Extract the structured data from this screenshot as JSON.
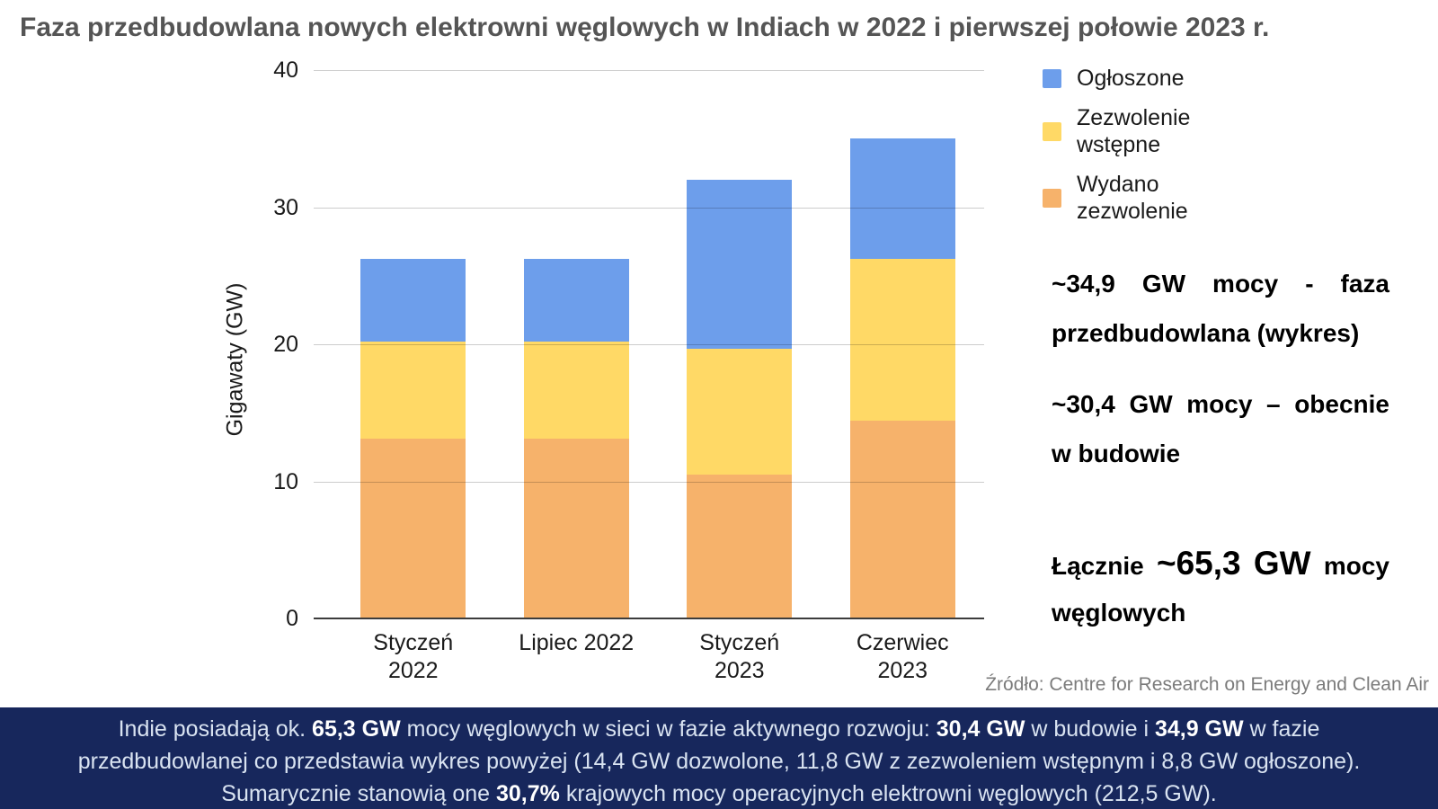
{
  "title": "Faza przedbudowlana nowych elektrowni węglowych w Indiach w 2022 i pierwszej połowie 2023 r.",
  "colors": {
    "announced_blue": "#6d9eeb",
    "pre_permit_yellow": "#ffd966",
    "permitted_orange": "#f6b26b",
    "banner_background": "#17275c",
    "banner_text": "#d9e3f1",
    "title_text": "#555555",
    "source_text": "#7b7b7b",
    "axis_line": "#3c3c3c",
    "gridline": "#cccccc"
  },
  "chart_data": {
    "type": "bar",
    "stacked": true,
    "title": "Faza przedbudowlana nowych elektrowni węglowych w Indiach w 2022 i pierwszej połowie 2023 r.",
    "xlabel": "",
    "ylabel": "Gigawaty (GW)",
    "ylim": [
      0,
      40
    ],
    "yticks": [
      0,
      10,
      20,
      30,
      40
    ],
    "grid": true,
    "legend_position": "right",
    "categories": [
      "Styczeń 2022",
      "Lipiec 2022",
      "Styczeń 2023",
      "Czerwiec 2023"
    ],
    "series": [
      {
        "name": "Wydano zezwolenie",
        "color": "#f6b26b",
        "values": [
          13.1,
          13.1,
          10.5,
          14.4
        ]
      },
      {
        "name": "Zezwolenie wstępne",
        "color": "#ffd966",
        "values": [
          7.1,
          7.1,
          9.2,
          11.8
        ]
      },
      {
        "name": "Ogłoszone",
        "color": "#6d9eeb",
        "values": [
          6.0,
          6.0,
          12.3,
          8.8
        ]
      }
    ],
    "totals": [
      26.2,
      26.2,
      32.0,
      35.0
    ]
  },
  "legend": [
    {
      "label": "Ogłoszone",
      "color": "#6d9eeb"
    },
    {
      "label": "Zezwolenie wstępne",
      "color": "#ffd966"
    },
    {
      "label": "Wydano zezwolenie",
      "color": "#f6b26b"
    }
  ],
  "annotations": {
    "pre_construction": {
      "line1": [
        {
          "t": "~34,9"
        },
        {
          "t": "GW"
        },
        {
          "t": "mocy"
        },
        {
          "t": "-"
        },
        {
          "t": "faza"
        }
      ],
      "line2": "przedbudowlana (wykres)"
    },
    "under_construction": {
      "line1": [
        {
          "t": "~30,4"
        },
        {
          "t": "GW"
        },
        {
          "t": "mocy"
        },
        {
          "t": "–"
        },
        {
          "t": "obecnie"
        }
      ],
      "line2": "w budowie"
    },
    "total": {
      "line1": [
        {
          "t": "Łącznie"
        },
        {
          "t": "~65,3",
          "big": true
        },
        {
          "t": "GW",
          "big": true
        },
        {
          "t": "mocy"
        }
      ],
      "line2": "węglowych"
    }
  },
  "source": "Źródło: Centre for Research on Energy and Clean Air",
  "banner": {
    "lines": [
      [
        {
          "t": "Indie posiadają ok. "
        },
        {
          "t": "65,3 GW",
          "b": true
        },
        {
          "t": " mocy węglowych w sieci w fazie aktywnego rozwoju: "
        },
        {
          "t": "30,4 GW",
          "b": true
        },
        {
          "t": " w budowie i "
        },
        {
          "t": "34,9 GW",
          "b": true
        },
        {
          "t": " w fazie"
        }
      ],
      [
        {
          "t": "przedbudowlanej co przedstawia wykres powyżej (14,4 GW dozwolone, 11,8 GW z zezwoleniem wstępnym i 8,8 GW ogłoszone)."
        }
      ],
      [
        {
          "t": "Sumarycznie stanowią one "
        },
        {
          "t": "30,7%",
          "b": true
        },
        {
          "t": " krajowych mocy operacyjnych elektrowni węglowych (212,5 GW)."
        }
      ]
    ]
  }
}
